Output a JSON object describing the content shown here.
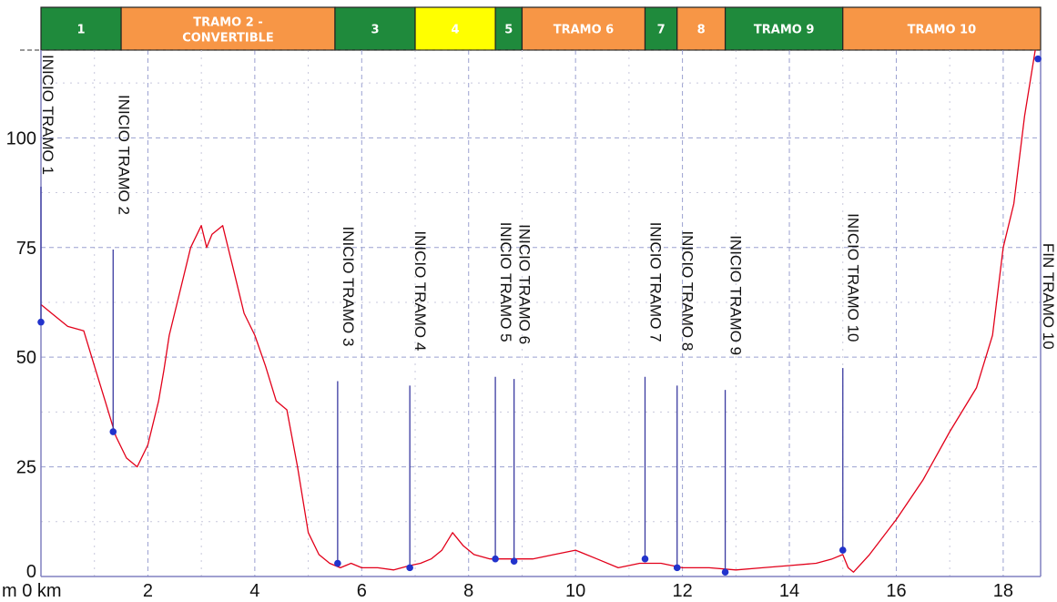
{
  "chart_data": {
    "type": "line",
    "title": "",
    "xlabel": "",
    "ylabel": "",
    "x_unit": "km",
    "y_unit": "m",
    "xlim": [
      0,
      18.7
    ],
    "ylim": [
      0,
      120
    ],
    "x_ticks": [
      {
        "value": 2,
        "label": "2"
      },
      {
        "value": 4,
        "label": "4"
      },
      {
        "value": 6,
        "label": "6"
      },
      {
        "value": 8,
        "label": "8"
      },
      {
        "value": 10,
        "label": "10"
      },
      {
        "value": 12,
        "label": "12"
      },
      {
        "value": 14,
        "label": "14"
      },
      {
        "value": 16,
        "label": "16"
      },
      {
        "value": 18,
        "label": "18"
      }
    ],
    "x_origin_label": "m 0 km",
    "y_ticks": [
      {
        "value": 25,
        "label": "25"
      },
      {
        "value": 50,
        "label": "50"
      },
      {
        "value": 75,
        "label": "75"
      },
      {
        "value": 100,
        "label": "100"
      }
    ],
    "y_origin_label": "0",
    "grid": true,
    "series": [
      {
        "color": "#e2001a",
        "x": [
          0,
          0.2,
          0.5,
          0.8,
          1.0,
          1.2,
          1.4,
          1.6,
          1.8,
          2.0,
          2.2,
          2.3,
          2.4,
          2.6,
          2.8,
          3.0,
          3.1,
          3.2,
          3.4,
          3.6,
          3.8,
          4.0,
          4.2,
          4.4,
          4.6,
          4.8,
          5.0,
          5.2,
          5.4,
          5.6,
          5.8,
          6.0,
          6.3,
          6.6,
          6.9,
          7.1,
          7.3,
          7.5,
          7.7,
          7.9,
          8.1,
          8.4,
          8.8,
          9.2,
          9.6,
          10.0,
          10.4,
          10.8,
          11.2,
          11.6,
          12.0,
          12.5,
          13.0,
          13.5,
          14.0,
          14.5,
          14.8,
          15.0,
          15.1,
          15.2,
          15.5,
          16.0,
          16.5,
          17.0,
          17.5,
          17.8,
          18.0,
          18.2,
          18.4,
          18.6
        ],
        "y": [
          62,
          60,
          57,
          56,
          48,
          40,
          32,
          27,
          25,
          30,
          40,
          47,
          55,
          65,
          75,
          80,
          75,
          78,
          80,
          70,
          60,
          55,
          48,
          40,
          38,
          25,
          10,
          5,
          3,
          2,
          3,
          2,
          2,
          1.5,
          2.5,
          3,
          4,
          6,
          10,
          7,
          5,
          4,
          4,
          4,
          5,
          6,
          4,
          2,
          3,
          3,
          2,
          2,
          1.5,
          2,
          2.5,
          3,
          4,
          5,
          2,
          1,
          5,
          13,
          22,
          33,
          43,
          55,
          75,
          85,
          105,
          120
        ]
      }
    ],
    "markers": [
      {
        "label": "INICIO TRAMO 1",
        "x": 0.0,
        "y": 58
      },
      {
        "label": "INICIO TRAMO 2",
        "x": 1.35,
        "y": 33
      },
      {
        "label": "INICIO TRAMO 3",
        "x": 5.55,
        "y": 3
      },
      {
        "label": "INICIO TRAMO 4",
        "x": 6.9,
        "y": 2
      },
      {
        "label": "INICIO TRAMO 5",
        "x": 8.5,
        "y": 4
      },
      {
        "label": "INICIO TRAMO 6",
        "x": 8.85,
        "y": 3.5
      },
      {
        "label": "INICIO TRAMO 7",
        "x": 11.3,
        "y": 4
      },
      {
        "label": "INICIO TRAMO 8",
        "x": 11.9,
        "y": 2
      },
      {
        "label": "INICIO TRAMO 9",
        "x": 12.8,
        "y": 1
      },
      {
        "label": "INICIO TRAMO 10",
        "x": 15.0,
        "y": 6
      },
      {
        "label": "FIN TRAMO 10",
        "x": 18.65,
        "y": 118
      }
    ],
    "segments": [
      {
        "label": "1",
        "color": "#1f8a3c",
        "from": 0.0,
        "to": 1.5
      },
      {
        "label": "TRAMO 2 - CONVERTIBLE",
        "color": "#f79646",
        "from": 1.5,
        "to": 5.5
      },
      {
        "label": "3",
        "color": "#1f8a3c",
        "from": 5.5,
        "to": 7.0
      },
      {
        "label": "4",
        "color": "#ffff00",
        "from": 7.0,
        "to": 8.5
      },
      {
        "label": "5",
        "color": "#1f8a3c",
        "from": 8.5,
        "to": 9.0
      },
      {
        "label": "TRAMO 6",
        "color": "#f79646",
        "from": 9.0,
        "to": 11.3
      },
      {
        "label": "7",
        "color": "#1f8a3c",
        "from": 11.3,
        "to": 11.9
      },
      {
        "label": "8",
        "color": "#f79646",
        "from": 11.9,
        "to": 12.8
      },
      {
        "label": "TRAMO 9",
        "color": "#1f8a3c",
        "from": 12.8,
        "to": 15.0
      },
      {
        "label": "TRAMO 10",
        "color": "#f79646",
        "from": 15.0,
        "to": 18.7
      }
    ]
  }
}
